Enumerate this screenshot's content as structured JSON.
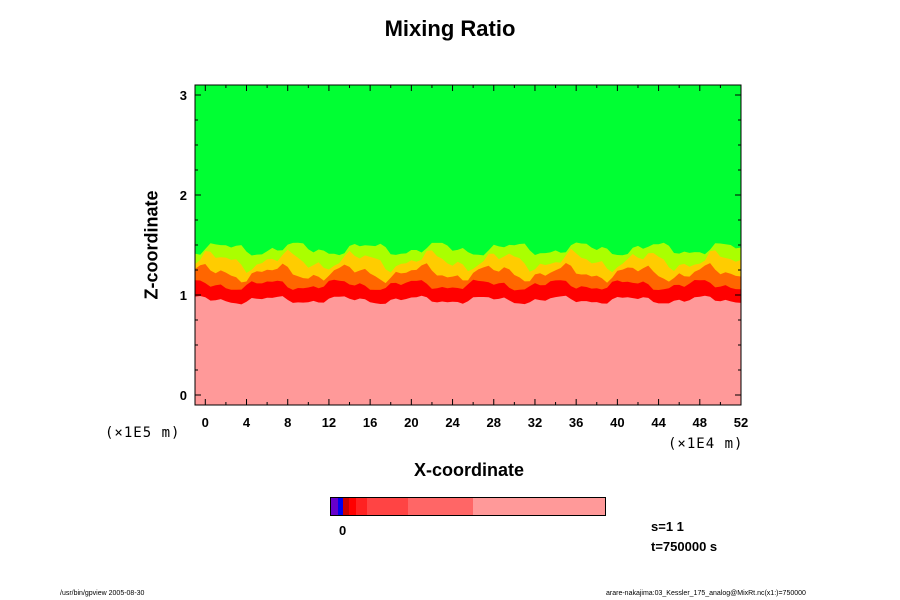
{
  "chart_data": {
    "type": "heatmap",
    "title": "Mixing Ratio",
    "xlabel": "X-coordinate",
    "ylabel": "Z-coordinate",
    "x_unit": "(×1E4 m)",
    "y_unit": "(×1E5 m)",
    "xlim": [
      -1,
      52
    ],
    "ylim": [
      -0.1,
      3.1
    ],
    "x_ticks": [
      "0",
      "4",
      "8",
      "12",
      "16",
      "20",
      "24",
      "28",
      "32",
      "36",
      "40",
      "44",
      "48",
      "52"
    ],
    "y_ticks": [
      "0",
      "1",
      "2",
      "3"
    ],
    "regions": [
      {
        "name": "upper",
        "z_range": [
          1.45,
          3.1
        ],
        "color": "#00ff33"
      },
      {
        "name": "interface",
        "z_range": [
          0.95,
          1.45
        ],
        "colors": [
          "#ff0000",
          "#ff6600",
          "#ffcc00",
          "#aaff00"
        ]
      },
      {
        "name": "lower",
        "z_range": [
          -0.1,
          0.95
        ],
        "color": "#ff9999"
      }
    ],
    "interface_mean_z": 1.1,
    "colorbar": {
      "label_zero": "0",
      "segments": [
        {
          "color": "#6600cc",
          "frac": 0.025
        },
        {
          "color": "#0000ee",
          "frac": 0.02
        },
        {
          "color": "#cc0000",
          "frac": 0.02
        },
        {
          "color": "#ff0000",
          "frac": 0.025
        },
        {
          "color": "#ff2222",
          "frac": 0.04
        },
        {
          "color": "#ff4444",
          "frac": 0.15
        },
        {
          "color": "#ff6666",
          "frac": 0.24
        },
        {
          "color": "#ff9999",
          "frac": 0.48
        }
      ]
    },
    "annotations": {
      "s": "s=1 1",
      "t": "t=750000 s"
    }
  },
  "footer": {
    "left": "/usr/bin/gpview 2005-08-30",
    "right": "arare-nakajima:03_Kessler_175_analog@MixRt.nc(x1:)=750000"
  }
}
